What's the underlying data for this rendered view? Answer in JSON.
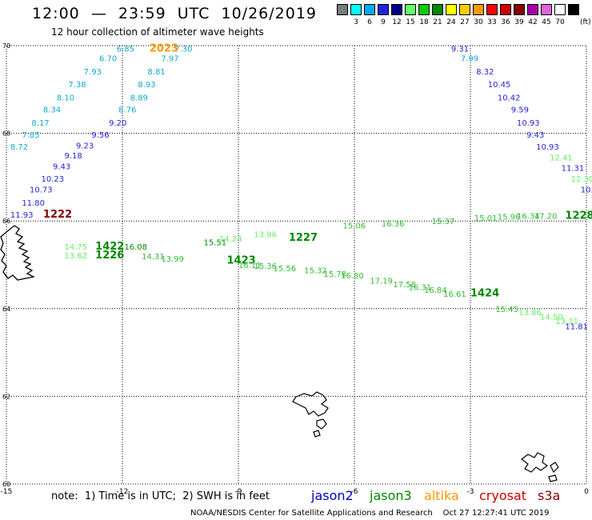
{
  "header": {
    "title": "12:00  —  23:59  UTC  10/26/2019",
    "subtitle": "12 hour collection of altimeter wave heights"
  },
  "legend": {
    "unit": "(ft)",
    "swatches": [
      {
        "color": "#7b7b7b",
        "label": ""
      },
      {
        "color": "#00ffff",
        "label": "3"
      },
      {
        "color": "#00aaee",
        "label": "6"
      },
      {
        "color": "#2222dd",
        "label": "9"
      },
      {
        "color": "#000088",
        "label": "12"
      },
      {
        "color": "#66ff66",
        "label": "15"
      },
      {
        "color": "#00cc00",
        "label": "18"
      },
      {
        "color": "#008800",
        "label": "21"
      },
      {
        "color": "#ffff00",
        "label": "24"
      },
      {
        "color": "#ffcc00",
        "label": "27"
      },
      {
        "color": "#ff9900",
        "label": "30"
      },
      {
        "color": "#ff0000",
        "label": "33"
      },
      {
        "color": "#cc0000",
        "label": "36"
      },
      {
        "color": "#880000",
        "label": "39"
      },
      {
        "color": "#aa00aa",
        "label": "42"
      },
      {
        "color": "#dd66dd",
        "label": "45"
      },
      {
        "color": "#ffffff",
        "label": "70"
      },
      {
        "color": "#000000",
        "label": ""
      }
    ]
  },
  "axes": {
    "lat_labels": [
      "70",
      "68",
      "66",
      "64",
      "62",
      "60"
    ],
    "lon_labels": [
      "-15",
      "-12",
      "-9",
      "-6",
      "-3",
      "0"
    ]
  },
  "labels": [
    {
      "t": "6.85",
      "lon": -12.15,
      "lat": 69.94,
      "c": "#11aacc"
    },
    {
      "t": "7.30",
      "lon": -10.65,
      "lat": 69.94,
      "c": "#11aacc"
    },
    {
      "t": "2023",
      "lon": -11.3,
      "lat": 69.94,
      "c": "#ff9900",
      "big": true
    },
    {
      "t": "6.70",
      "lon": -12.6,
      "lat": 69.72,
      "c": "#11aacc"
    },
    {
      "t": "7.97",
      "lon": -11.0,
      "lat": 69.72,
      "c": "#11aacc"
    },
    {
      "t": "7.93",
      "lon": -13.0,
      "lat": 69.42,
      "c": "#11aacc"
    },
    {
      "t": "8.81",
      "lon": -11.35,
      "lat": 69.42,
      "c": "#11aacc"
    },
    {
      "t": "7.38",
      "lon": -13.4,
      "lat": 69.12,
      "c": "#11aacc"
    },
    {
      "t": "8.93",
      "lon": -11.6,
      "lat": 69.12,
      "c": "#11aacc"
    },
    {
      "t": "8.10",
      "lon": -13.7,
      "lat": 68.82,
      "c": "#11aacc"
    },
    {
      "t": "8.89",
      "lon": -11.8,
      "lat": 68.82,
      "c": "#11aacc"
    },
    {
      "t": "8.34",
      "lon": -14.05,
      "lat": 68.55,
      "c": "#11aacc"
    },
    {
      "t": "8.76",
      "lon": -12.1,
      "lat": 68.55,
      "c": "#11aacc"
    },
    {
      "t": "8.17",
      "lon": -14.35,
      "lat": 68.25,
      "c": "#11aacc"
    },
    {
      "t": "9.20",
      "lon": -12.35,
      "lat": 68.25,
      "c": "#2222dd"
    },
    {
      "t": "7.85",
      "lon": -14.6,
      "lat": 67.97,
      "c": "#11aacc"
    },
    {
      "t": "9.56",
      "lon": -12.8,
      "lat": 67.97,
      "c": "#2222dd"
    },
    {
      "t": "8.72",
      "lon": -14.9,
      "lat": 67.7,
      "c": "#11aacc"
    },
    {
      "t": "9.23",
      "lon": -13.2,
      "lat": 67.73,
      "c": "#2222dd"
    },
    {
      "t": "9.18",
      "lon": -13.5,
      "lat": 67.5,
      "c": "#2222dd"
    },
    {
      "t": "9.43",
      "lon": -13.8,
      "lat": 67.25,
      "c": "#2222dd"
    },
    {
      "t": "10.23",
      "lon": -14.1,
      "lat": 66.97,
      "c": "#2222dd"
    },
    {
      "t": "10.73",
      "lon": -14.4,
      "lat": 66.72,
      "c": "#2222dd"
    },
    {
      "t": "11.80",
      "lon": -14.6,
      "lat": 66.42,
      "c": "#2222dd"
    },
    {
      "t": "11.93",
      "lon": -14.9,
      "lat": 66.15,
      "c": "#2222dd"
    },
    {
      "t": "1222",
      "lon": -14.05,
      "lat": 66.15,
      "c": "#880000",
      "big": true
    },
    {
      "t": "9.31",
      "lon": -3.5,
      "lat": 69.94,
      "c": "#2222dd"
    },
    {
      "t": "7.99",
      "lon": -3.25,
      "lat": 69.72,
      "c": "#11aacc"
    },
    {
      "t": "8.32",
      "lon": -2.85,
      "lat": 69.42,
      "c": "#2222dd"
    },
    {
      "t": "10.45",
      "lon": -2.55,
      "lat": 69.12,
      "c": "#2222dd"
    },
    {
      "t": "10.42",
      "lon": -2.3,
      "lat": 68.82,
      "c": "#2222dd"
    },
    {
      "t": "9.59",
      "lon": -1.95,
      "lat": 68.55,
      "c": "#2222dd"
    },
    {
      "t": "10.93",
      "lon": -1.8,
      "lat": 68.25,
      "c": "#2222dd"
    },
    {
      "t": "9.43",
      "lon": -1.55,
      "lat": 67.97,
      "c": "#2222dd"
    },
    {
      "t": "10.93",
      "lon": -1.3,
      "lat": 67.7,
      "c": "#2222dd"
    },
    {
      "t": "12.41",
      "lon": -0.95,
      "lat": 67.45,
      "c": "#66ee66"
    },
    {
      "t": "11.31",
      "lon": -0.65,
      "lat": 67.22,
      "c": "#2222dd"
    },
    {
      "t": "12.30",
      "lon": -0.4,
      "lat": 66.97,
      "c": "#66ee66"
    },
    {
      "t": "10.",
      "lon": -0.15,
      "lat": 66.72,
      "c": "#2222dd"
    },
    {
      "t": "14.75",
      "lon": -13.5,
      "lat": 65.42,
      "c": "#66ee66"
    },
    {
      "t": "13.62",
      "lon": -13.5,
      "lat": 65.22,
      "c": "#66ee66"
    },
    {
      "t": "1422",
      "lon": -12.7,
      "lat": 65.42,
      "c": "#008800",
      "big": true
    },
    {
      "t": "1226",
      "lon": -12.7,
      "lat": 65.22,
      "c": "#008800",
      "big": true
    },
    {
      "t": "16.08",
      "lon": -11.95,
      "lat": 65.42,
      "c": "#008800"
    },
    {
      "t": "14.31",
      "lon": -11.5,
      "lat": 65.2,
      "c": "#33bb33"
    },
    {
      "t": "13.99",
      "lon": -11.0,
      "lat": 65.15,
      "c": "#33bb33"
    },
    {
      "t": "15.51",
      "lon": -9.9,
      "lat": 65.52,
      "c": "#008800"
    },
    {
      "t": "1423",
      "lon": -9.3,
      "lat": 65.1,
      "c": "#008800",
      "big": true
    },
    {
      "t": "16.11",
      "lon": -9.0,
      "lat": 65.0,
      "c": "#33bb33"
    },
    {
      "t": "15.36",
      "lon": -8.6,
      "lat": 64.98,
      "c": "#33bb33"
    },
    {
      "t": "15.56",
      "lon": -8.1,
      "lat": 64.93,
      "c": "#33bb33"
    },
    {
      "t": "1227",
      "lon": -7.7,
      "lat": 65.62,
      "c": "#008800",
      "big": true
    },
    {
      "t": "15.32",
      "lon": -7.3,
      "lat": 64.88,
      "c": "#33bb33"
    },
    {
      "t": "15.78",
      "lon": -6.8,
      "lat": 64.8,
      "c": "#33bb33"
    },
    {
      "t": "16.80",
      "lon": -6.35,
      "lat": 64.76,
      "c": "#33bb33"
    },
    {
      "t": "17.19",
      "lon": -5.6,
      "lat": 64.64,
      "c": "#33bb33"
    },
    {
      "t": "17.58",
      "lon": -5.0,
      "lat": 64.56,
      "c": "#33bb33"
    },
    {
      "t": "16.31",
      "lon": -4.6,
      "lat": 64.5,
      "c": "#33bb33"
    },
    {
      "t": "16.84",
      "lon": -4.2,
      "lat": 64.43,
      "c": "#33bb33"
    },
    {
      "t": "16.61",
      "lon": -3.7,
      "lat": 64.34,
      "c": "#33bb33"
    },
    {
      "t": "1424",
      "lon": -3.0,
      "lat": 64.35,
      "c": "#008800",
      "big": true
    },
    {
      "t": "15.45",
      "lon": -2.35,
      "lat": 64.0,
      "c": "#33bb33"
    },
    {
      "t": "13.86",
      "lon": -1.75,
      "lat": 63.92,
      "c": "#66ee66"
    },
    {
      "t": "14.50",
      "lon": -1.2,
      "lat": 63.82,
      "c": "#66ee66"
    },
    {
      "t": "13.21",
      "lon": -0.8,
      "lat": 63.72,
      "c": "#66ee66"
    },
    {
      "t": "11.81",
      "lon": -0.55,
      "lat": 63.6,
      "c": "#2222dd"
    },
    {
      "t": "15.01",
      "lon": -2.9,
      "lat": 66.08,
      "c": "#33bb33"
    },
    {
      "t": "15.96",
      "lon": -2.3,
      "lat": 66.1,
      "c": "#33bb33"
    },
    {
      "t": "16.34",
      "lon": -1.8,
      "lat": 66.12,
      "c": "#33bb33"
    },
    {
      "t": "17.20",
      "lon": -1.35,
      "lat": 66.12,
      "c": "#33bb33"
    },
    {
      "t": "1228",
      "lon": -0.55,
      "lat": 66.12,
      "c": "#008800",
      "big": true
    },
    {
      "t": "15.37",
      "lon": -4.0,
      "lat": 66.0,
      "c": "#33bb33"
    },
    {
      "t": "16.36",
      "lon": -5.3,
      "lat": 65.95,
      "c": "#33bb33"
    },
    {
      "t": "15.06",
      "lon": -6.3,
      "lat": 65.9,
      "c": "#33bb33"
    },
    {
      "t": "13.96",
      "lon": -8.6,
      "lat": 65.7,
      "c": "#66ee66"
    },
    {
      "t": "14.24",
      "lon": -9.5,
      "lat": 65.6,
      "c": "#66ee66"
    }
  ],
  "missions": [
    {
      "name": "jason2",
      "color": "#0000cc"
    },
    {
      "name": "jason3",
      "color": "#008800"
    },
    {
      "name": "altika",
      "color": "#ff9900"
    },
    {
      "name": "cryosat",
      "color": "#cc0000"
    },
    {
      "name": "s3a",
      "color": "#880000"
    }
  ],
  "note": "note:  1) Time is in UTC;  2) SWH is in feet",
  "credit": "NOAA/NESDIS Center for Satellite Applications and Research    Oct 27 12:27:41 UTC 2019"
}
